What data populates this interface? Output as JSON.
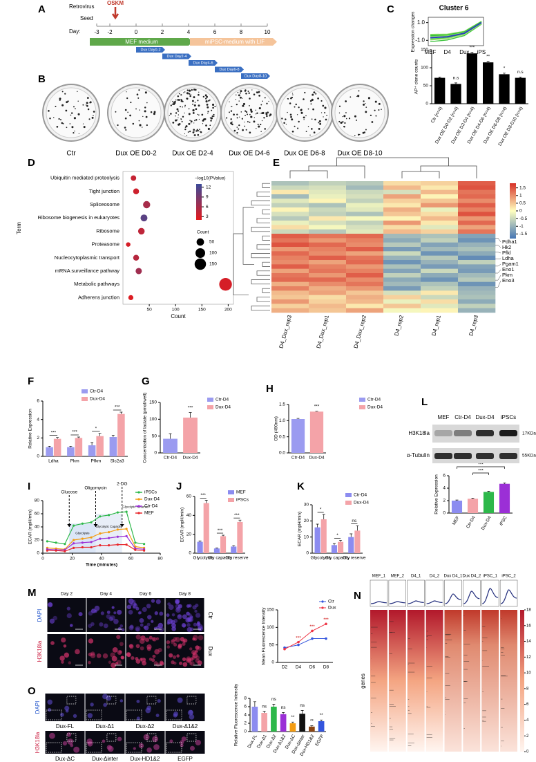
{
  "panel_labels": [
    "A",
    "B",
    "C",
    "D",
    "E",
    "F",
    "G",
    "H",
    "L",
    "I",
    "J",
    "K",
    "M",
    "N",
    "O"
  ],
  "timeline": {
    "top_label": "Retrovirus",
    "treatment": "OSKM",
    "seed": "Seed",
    "axis_label": "Day:",
    "days": [
      -3,
      -2,
      0,
      2,
      4,
      6,
      8,
      10
    ],
    "media": [
      "MEF medium",
      "miPSC-medium with LIF"
    ],
    "dux": [
      "Dux Day0-2",
      "Dux Day2-4",
      "Dux Day4-6",
      "Dux Day6-8",
      "Dux Day8-10"
    ]
  },
  "cluster": {
    "title": "Cluster 6",
    "ylabel": "Expression changes",
    "ylim": [
      -1.6,
      1.6
    ],
    "yticks": [
      {
        "value": 1,
        "label": "1.0"
      },
      {
        "value": -1,
        "label": "-1.0"
      }
    ],
    "categories": [
      "MEF",
      "D4",
      "Dux",
      "iPS"
    ],
    "values": [
      -0.7,
      -0.6,
      -0.2,
      1.0
    ]
  },
  "plates": {
    "labels": [
      "Ctr",
      "Dux OE D0-2",
      "Dux OE D2-4",
      "Dux OE D4-6",
      "Dux OE D6-8",
      "Dux OE D8-10"
    ]
  },
  "dotplot": {
    "terms": [
      "Ubiquitin mediated proteolysis",
      "Tight junction",
      "Spliceosome",
      "Ribosome biogenesis in eukaryotes",
      "Ribosome",
      "Proteasome",
      "Nucleocytoplasmic transport",
      "mRNA surveillance pathway",
      "Metabolic pathways",
      "Adherens junction"
    ],
    "counts": [
      20,
      25,
      45,
      40,
      35,
      10,
      25,
      30,
      195,
      15
    ],
    "pvalue": [
      4,
      3.5,
      6,
      11,
      4.5,
      3,
      5,
      6.5,
      3,
      2.5
    ],
    "xlabel": "Count",
    "ylabel": "Term",
    "xlim": [
      0,
      210
    ],
    "xticks": [
      50,
      100,
      150,
      200
    ],
    "color_title": "−log10(PValue)",
    "clim": [
      2,
      13
    ],
    "color_ticks": [
      12,
      9,
      6,
      3
    ],
    "size_title": "Count",
    "size_ticks": [
      50,
      100,
      150
    ]
  },
  "heatmap": {
    "columns": [
      "D4_Dux_rep3",
      "D4_Dux_rep1",
      "D4_Dux_rep2",
      "D4_rep2",
      "D4_rep1",
      "D4_rep3"
    ],
    "genes": [
      "Pdha1",
      "Hk2",
      "Pfkl",
      "Ldha",
      "Pgam1",
      "Eno1",
      "Pkm",
      "Eno3"
    ],
    "clim": [
      -1.8,
      1.8
    ],
    "cticks": [
      1.5,
      1,
      0.5,
      0,
      -0.5,
      -1,
      -1.5
    ],
    "matrix": [
      [
        -0.8,
        -0.6,
        -0.7,
        0.3,
        0.4,
        1.4
      ],
      [
        -0.5,
        -0.4,
        -0.9,
        0.6,
        0.2,
        1.5
      ],
      [
        0.2,
        -0.3,
        -0.5,
        -0.4,
        0.6,
        1.2
      ],
      [
        -0.9,
        -0.2,
        -0.4,
        0.8,
        0.1,
        1.3
      ],
      [
        -0.3,
        0.1,
        -0.6,
        0.4,
        0.5,
        1.0
      ],
      [
        -0.6,
        -0.8,
        -0.2,
        0.2,
        0.9,
        1.4
      ],
      [
        0.1,
        -0.5,
        -0.3,
        0.7,
        -0.2,
        1.1
      ],
      [
        -0.4,
        -0.6,
        -0.8,
        0.5,
        0.3,
        1.5
      ],
      [
        -0.7,
        0.2,
        -0.1,
        0.1,
        0.6,
        0.9
      ],
      [
        -0.2,
        -0.4,
        -0.6,
        0.9,
        0.2,
        1.3
      ],
      [
        0.3,
        -0.1,
        -0.4,
        0.3,
        -0.3,
        0.8
      ],
      [
        -0.5,
        -0.7,
        -0.3,
        0.6,
        0.4,
        1.2
      ],
      [
        1.4,
        1.2,
        1.3,
        -0.9,
        -0.8,
        -1.2
      ],
      [
        1.2,
        0.9,
        1.1,
        -1.1,
        -0.6,
        -1.4
      ],
      [
        1.5,
        1.3,
        1.0,
        -0.7,
        -1.2,
        -1.0
      ],
      [
        0.9,
        1.1,
        1.4,
        -1.3,
        -0.9,
        -0.8
      ],
      [
        1.3,
        1.0,
        0.8,
        -0.5,
        -1.4,
        -1.1
      ],
      [
        1.1,
        1.4,
        1.2,
        -1.0,
        -0.7,
        -1.5
      ],
      [
        1.0,
        0.8,
        1.3,
        -1.4,
        -1.0,
        -0.6
      ],
      [
        1.4,
        1.1,
        0.9,
        -0.8,
        -1.3,
        -1.2
      ],
      [
        0.8,
        1.2,
        1.1,
        -1.2,
        -0.5,
        -1.3
      ],
      [
        1.2,
        0.9,
        1.4,
        -0.6,
        -1.1,
        -0.9
      ],
      [
        1.3,
        1.3,
        1.0,
        -1.1,
        -1.4,
        -0.7
      ],
      [
        0.7,
        1.0,
        1.2,
        -0.9,
        -0.8,
        -1.4
      ],
      [
        1.1,
        0.7,
        0.9,
        -1.3,
        -0.6,
        -1.0
      ],
      [
        0.6,
        0.8,
        0.5,
        -0.4,
        0.2,
        -0.9
      ],
      [
        0.5,
        0.3,
        0.7,
        0.4,
        -0.5,
        -0.8
      ],
      [
        0.9,
        0.4,
        0.6,
        -0.2,
        0.3,
        -1.1
      ],
      [
        0.4,
        0.6,
        0.2,
        0.5,
        -0.3,
        -0.6
      ],
      [
        0.7,
        0.5,
        0.8,
        -0.1,
        0.1,
        -1.0
      ]
    ]
  },
  "blot": {
    "lanes": [
      "MEF",
      "Ctr-D4",
      "Dux-D4",
      "iPSCs"
    ],
    "proteins": [
      "H3K18la",
      "α-Tubulin"
    ],
    "sizes": [
      "17KDa",
      "55KDa"
    ]
  },
  "ecar": {
    "xlabel": "Time (minutes)",
    "ylabel": "ECAR (mpH/min)",
    "xlim": [
      0,
      80
    ],
    "xticks": [
      0,
      20,
      40,
      60,
      80
    ],
    "ylim": [
      0,
      80
    ],
    "yticks": [
      0,
      20,
      40,
      60,
      80
    ],
    "x": [
      3,
      9,
      15,
      21,
      27,
      33,
      39,
      45,
      51,
      57,
      63,
      69
    ],
    "injections": [
      "Glucose",
      "Oligomycin",
      "2-DG"
    ],
    "phases": [
      "Glycolysis",
      "Glycolytic Capacity",
      "Glycolytic Reserve"
    ],
    "series": [
      {
        "name": "iPSCs",
        "color": "#2db84a",
        "values": [
          18,
          16,
          14,
          42,
          45,
          47,
          56,
          58,
          62,
          63,
          16,
          14
        ]
      },
      {
        "name": "Dux-D4",
        "color": "#f39c12",
        "values": [
          8,
          7,
          6,
          20,
          22,
          24,
          30,
          32,
          36,
          37,
          10,
          8
        ]
      },
      {
        "name": "Ctr-D4",
        "color": "#9b30d6",
        "values": [
          6,
          5,
          5,
          15,
          16,
          17,
          22,
          23,
          25,
          26,
          7,
          6
        ]
      },
      {
        "name": "MEF",
        "color": "#e8262b",
        "values": [
          4,
          4,
          3,
          8,
          9,
          9,
          12,
          12,
          13,
          13,
          5,
          4
        ]
      }
    ]
  },
  "microscopy_m": {
    "days": [
      "Day 2",
      "Day 4",
      "Day 6",
      "Day 8"
    ],
    "stains": [
      "DAPI",
      "H3K18la"
    ],
    "conditions": [
      "Ctr",
      "Dux"
    ]
  },
  "mfi": {
    "ylabel": "Mean Fluorescence Intensity",
    "categories": [
      "D2",
      "D4",
      "D6",
      "D8"
    ],
    "ylim": [
      0,
      150
    ],
    "yticks": [
      0,
      50,
      100,
      150
    ],
    "series": [
      {
        "name": "Ctr",
        "color": "#3355dd",
        "values": [
          42,
          50,
          68,
          68
        ]
      },
      {
        "name": "Dux",
        "color": "#ee3344",
        "values": [
          38,
          58,
          90,
          110
        ]
      }
    ],
    "significance": [
      null,
      "***",
      "***",
      "***"
    ]
  },
  "chipseq": {
    "samples": [
      "MEF_1",
      "MEF_2",
      "D4_1",
      "D4_2",
      "Dux D4_1",
      "Dux D4_2",
      "iPSC_1",
      "iPSC_2"
    ],
    "ylabel": "genes",
    "clim": [
      0,
      18
    ],
    "cticks": [
      18,
      16,
      14,
      12,
      10,
      8,
      6,
      4,
      2,
      0
    ]
  },
  "microscopy_o": {
    "constructs": [
      "Dux-FL",
      "Dux-Δ1",
      "Dux-Δ2",
      "Dux-Δ1&2",
      "Dux-ΔC",
      "Dux-Δinter",
      "Dux-HD1&2",
      "EGFP"
    ],
    "stains": [
      "DAPI",
      "H3K18la"
    ]
  },
  "charts": {
    "C": {
      "ylabel": "AP⁺ clone counts",
      "ylim": [
        0,
        150
      ],
      "yticks": [
        0,
        50,
        100,
        150
      ],
      "categories": [
        "Ctr (n=4)",
        "Dux OE D0-D2 (n=4)",
        "Dux OE D2-D4 (n=4)",
        "Dux OE D4-D6 (n=4)",
        "Dux OE D6-D8 (n=4)",
        "Dux OE D8-D10 (n=4)"
      ],
      "series": [
        {
          "color": "#000000",
          "values": [
            72,
            55,
            140,
            115,
            82,
            72
          ],
          "errors": [
            2,
            3,
            3,
            3,
            3,
            2
          ]
        }
      ],
      "significance": [
        null,
        "n.s",
        "***",
        "**",
        "*",
        "n.s"
      ]
    },
    "F": {
      "ylabel": "Relative Expression",
      "ylim": [
        0,
        6
      ],
      "yticks": [
        0,
        2,
        4,
        6
      ],
      "categories": [
        "Ldha",
        "Pkm",
        "Pfkm",
        "Slc2a3"
      ],
      "series": [
        {
          "name": "Ctr-D4",
          "color": "#9b9bf0",
          "values": [
            1.0,
            1.0,
            1.2,
            2.1
          ],
          "errors": [
            0.1,
            0.1,
            0.3,
            0.2
          ]
        },
        {
          "name": "Dux-D4",
          "color": "#f4a3a8",
          "values": [
            1.9,
            2.0,
            2.2,
            4.6
          ],
          "errors": [
            0.15,
            0.1,
            0.3,
            0.2
          ]
        }
      ],
      "significance": [
        "***",
        "***",
        "*",
        "***"
      ]
    },
    "G": {
      "ylabel": "Concentration of lactate (pmol/well)",
      "ylim": [
        0,
        150
      ],
      "yticks": [
        0,
        50,
        100,
        150
      ],
      "categories": [
        "Ctr-D4",
        "Dux-D4"
      ],
      "series": [
        {
          "colors": [
            "#9b9bf0",
            "#f4a3a8"
          ],
          "values": [
            42,
            105
          ],
          "errors": [
            15,
            15
          ]
        }
      ],
      "significance": [
        null,
        "***"
      ]
    },
    "H": {
      "ylabel": "OD (490nm)",
      "ylim": [
        0,
        1.5
      ],
      "yticks": [
        {
          "value": 0,
          "label": "0.0"
        },
        0.5,
        {
          "value": 1,
          "label": "1.0"
        },
        1.5
      ],
      "categories": [
        "Ctr-D4",
        "Dux-D4"
      ],
      "series": [
        {
          "colors": [
            "#9b9bf0",
            "#f4a3a8"
          ],
          "values": [
            1.05,
            1.28
          ],
          "errors": [
            0.02,
            0.01
          ]
        }
      ],
      "significance": [
        null,
        "***"
      ]
    },
    "L": {
      "ylabel": "Relative Expression",
      "ylim": [
        0,
        6
      ],
      "yticks": [
        0,
        2,
        4,
        6
      ],
      "categories": [
        "MEF",
        "Ctr-D4",
        "Dux-D4",
        "iPSC"
      ],
      "series": [
        {
          "colors": [
            "#8c8cf0",
            "#f4a3a8",
            "#2db84a",
            "#9b2fd6"
          ],
          "values": [
            2.0,
            2.3,
            3.4,
            4.7
          ],
          "errors": [
            0.1,
            0.1,
            0.1,
            0.15
          ]
        }
      ],
      "significance": [
        null,
        null,
        "***",
        "***"
      ]
    },
    "J": {
      "ylabel": "ECAR (mpH/min)",
      "ylim": [
        0,
        60
      ],
      "yticks": [
        0,
        20,
        40,
        60
      ],
      "categories": [
        "Glycolysis",
        "Gly capacity",
        "Gly reserve"
      ],
      "series": [
        {
          "name": "MEF",
          "color": "#8c8cf0",
          "values": [
            12,
            5,
            7
          ],
          "errors": [
            1,
            0.5,
            1
          ]
        },
        {
          "name": "iPSCs",
          "color": "#f4a3a8",
          "values": [
            53,
            18,
            33
          ],
          "errors": [
            3,
            1,
            2
          ]
        }
      ],
      "significance": [
        "***",
        "***",
        "***"
      ]
    },
    "K": {
      "ylabel": "ECAR (mpH/min)",
      "ylim": [
        0,
        30
      ],
      "yticks": [
        0,
        10,
        20,
        30
      ],
      "categories": [
        "Glycolysis",
        "Gly capacity",
        "Gly reserve"
      ],
      "series": [
        {
          "name": "Ctr-D4",
          "color": "#8c8cf0",
          "values": [
            16,
            5,
            10
          ],
          "errors": [
            2,
            1,
            2
          ]
        },
        {
          "name": "Dux-D4",
          "color": "#f4a3a8",
          "values": [
            21,
            7,
            14
          ],
          "errors": [
            3,
            1,
            3
          ]
        }
      ],
      "significance": [
        "*",
        "*",
        "ns"
      ]
    },
    "O": {
      "ylabel": "Relative Fluorescence Intensity",
      "ylim": [
        0,
        8
      ],
      "yticks": [
        0,
        2,
        4,
        6,
        8
      ],
      "categories": [
        "Dux-FL",
        "Dux-Δ1",
        "Dux-Δ2",
        "Dux-Δ1&2",
        "Dux-ΔC",
        "Dux-Δinter",
        "Dux-HD1&2",
        "EGFP"
      ],
      "series": [
        {
          "colors": [
            "#8c8cf0",
            "#f4a3a8",
            "#2db84a",
            "#9b2fd6",
            "#f39c12",
            "#111111",
            "#8b4513",
            "#3355dd"
          ],
          "values": [
            6.0,
            4.5,
            6.0,
            4.2,
            2.0,
            4.3,
            1.2,
            2.5
          ],
          "errors": [
            1.2,
            0.4,
            0.6,
            0.4,
            0.3,
            0.8,
            0.2,
            0.3
          ]
        }
      ],
      "significance": [
        null,
        "ns",
        "ns",
        "ns",
        "**",
        "ns",
        "**",
        "**"
      ]
    }
  }
}
